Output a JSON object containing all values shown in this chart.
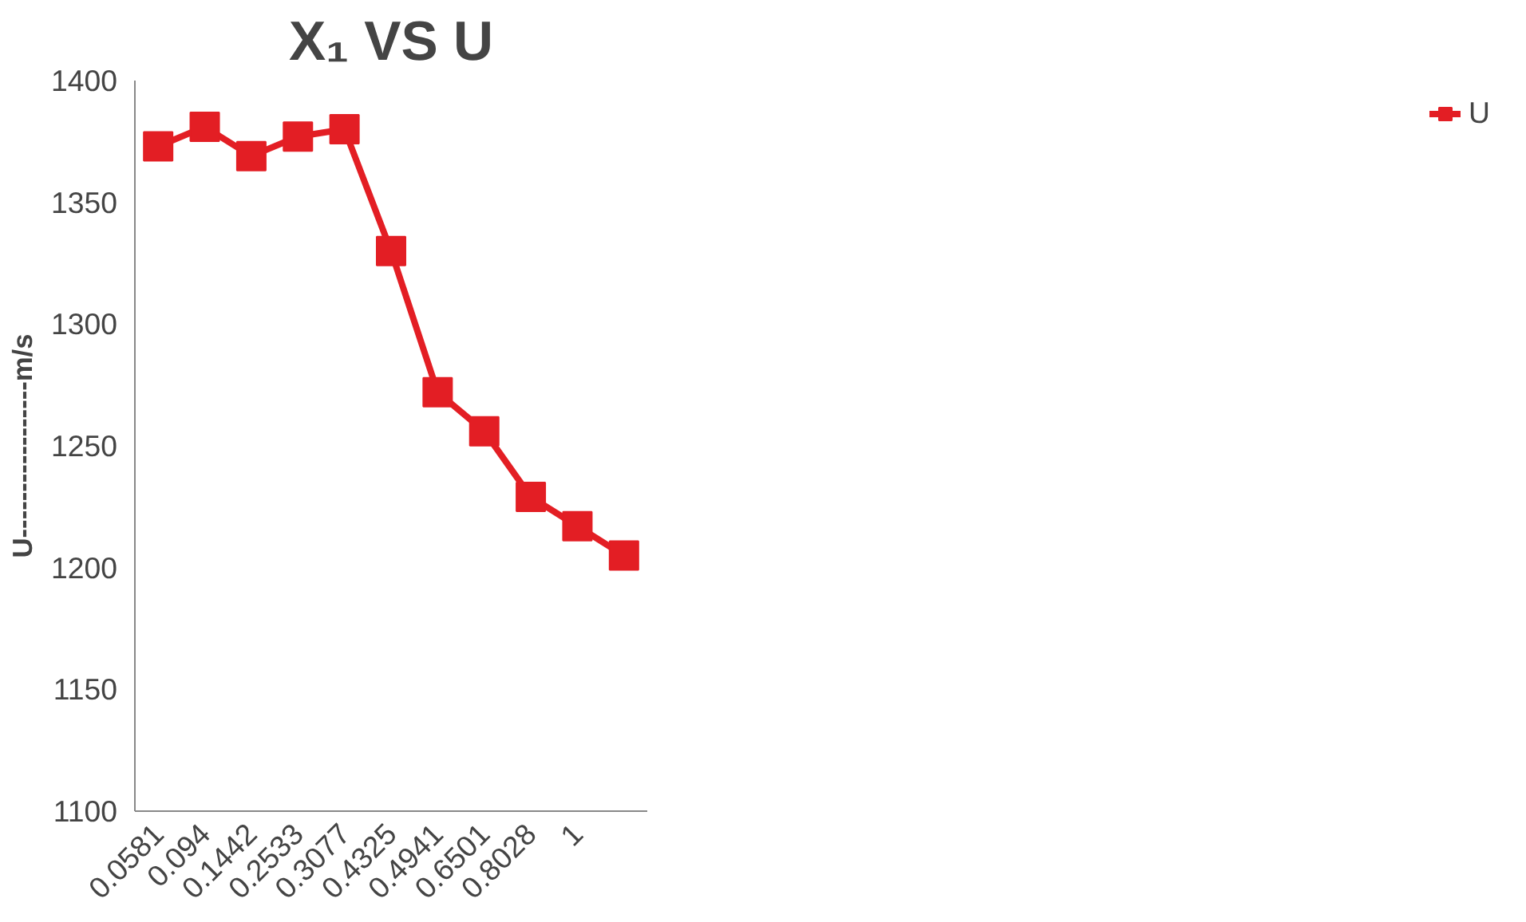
{
  "chart_data": {
    "type": "line",
    "title": "X₁ VS U",
    "ylabel": "U-----------------m/s",
    "categories": [
      "0.0581",
      "0.094",
      "0.1442",
      "0.2533",
      "0.3077",
      "0.4325",
      "0.4941",
      "0.6501",
      "0.8028",
      "1",
      null
    ],
    "series": [
      {
        "name": "U",
        "color": "#e31e24",
        "values": [
          1373,
          1381,
          1369,
          1377,
          1380,
          1330,
          1272,
          1256,
          1229,
          1217,
          1205
        ]
      }
    ],
    "ylim": [
      1100,
      1400
    ],
    "yticks": [
      1100,
      1150,
      1200,
      1250,
      1300,
      1350,
      1400
    ],
    "grid": false,
    "legend": "right",
    "marker": "square",
    "line_style": "solid"
  }
}
